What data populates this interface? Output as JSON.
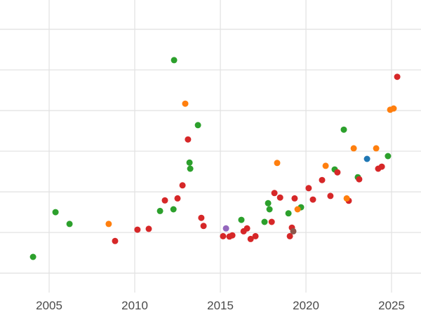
{
  "chart_data": {
    "type": "scatter",
    "title": "",
    "xlabel": "",
    "ylabel": "",
    "grid": true,
    "legend_position": "none",
    "xlim": [
      2002.13,
      2026.72
    ],
    "ylim": [
      -1.03,
      6.72
    ],
    "x_ticks": {
      "values": [
        2005,
        2010,
        2015,
        2020,
        2025
      ],
      "labels": [
        "2005",
        "2010",
        "2015",
        "2020",
        "2025"
      ]
    },
    "y_gridline_values": [
      0,
      1,
      2,
      3,
      4,
      5,
      6
    ],
    "gridline_color": "#e3e3e3",
    "tick_label_color": "#4a4a4a",
    "point_radius": 4.5,
    "series": [
      {
        "name": "green",
        "color": "#2ca02c",
        "points": [
          [
            2004.06,
            0.4
          ],
          [
            2005.37,
            1.5
          ],
          [
            2006.19,
            1.21
          ],
          [
            2011.48,
            1.53
          ],
          [
            2012.26,
            1.57
          ],
          [
            2012.3,
            5.24
          ],
          [
            2013.2,
            2.72
          ],
          [
            2013.24,
            2.57
          ],
          [
            2013.69,
            3.64
          ],
          [
            2016.23,
            1.31
          ],
          [
            2017.58,
            1.26
          ],
          [
            2017.79,
            1.72
          ],
          [
            2017.87,
            1.57
          ],
          [
            2018.98,
            1.47
          ],
          [
            2019.71,
            1.62
          ],
          [
            2021.68,
            2.55
          ],
          [
            2022.21,
            3.53
          ],
          [
            2023.03,
            2.36
          ],
          [
            2024.79,
            2.88
          ]
        ]
      },
      {
        "name": "red",
        "color": "#d62728",
        "points": [
          [
            2008.85,
            0.79
          ],
          [
            2010.16,
            1.07
          ],
          [
            2010.82,
            1.09
          ],
          [
            2011.76,
            1.79
          ],
          [
            2012.5,
            1.84
          ],
          [
            2012.79,
            2.16
          ],
          [
            2013.11,
            3.29
          ],
          [
            2013.89,
            1.36
          ],
          [
            2014.02,
            1.16
          ],
          [
            2015.16,
            0.91
          ],
          [
            2015.53,
            0.9
          ],
          [
            2015.7,
            0.93
          ],
          [
            2016.36,
            1.03
          ],
          [
            2016.56,
            1.1
          ],
          [
            2016.77,
            0.84
          ],
          [
            2017.05,
            0.91
          ],
          [
            2018.0,
            1.26
          ],
          [
            2018.16,
            1.97
          ],
          [
            2018.49,
            1.86
          ],
          [
            2019.06,
            0.91
          ],
          [
            2019.18,
            1.12
          ],
          [
            2019.34,
            1.84
          ],
          [
            2020.16,
            2.09
          ],
          [
            2020.41,
            1.81
          ],
          [
            2020.94,
            2.29
          ],
          [
            2021.43,
            1.9
          ],
          [
            2021.84,
            2.48
          ],
          [
            2022.5,
            1.78
          ],
          [
            2023.11,
            2.31
          ],
          [
            2024.22,
            2.57
          ],
          [
            2024.43,
            2.62
          ],
          [
            2025.33,
            4.83
          ]
        ]
      },
      {
        "name": "orange",
        "color": "#ff7f0e",
        "points": [
          [
            2008.48,
            1.21
          ],
          [
            2012.95,
            4.17
          ],
          [
            2018.32,
            2.71
          ],
          [
            2019.51,
            1.57
          ],
          [
            2021.15,
            2.64
          ],
          [
            2022.38,
            1.84
          ],
          [
            2022.79,
            3.07
          ],
          [
            2024.1,
            3.07
          ],
          [
            2024.92,
            4.02
          ],
          [
            2025.12,
            4.05
          ]
        ]
      },
      {
        "name": "blue",
        "color": "#1f77b4",
        "points": [
          [
            2023.57,
            2.81
          ]
        ]
      },
      {
        "name": "purple",
        "color": "#9467bd",
        "points": [
          [
            2015.33,
            1.1
          ]
        ]
      },
      {
        "name": "brown",
        "color": "#8c564b",
        "points": [
          [
            2019.26,
            1.03
          ]
        ]
      }
    ]
  }
}
